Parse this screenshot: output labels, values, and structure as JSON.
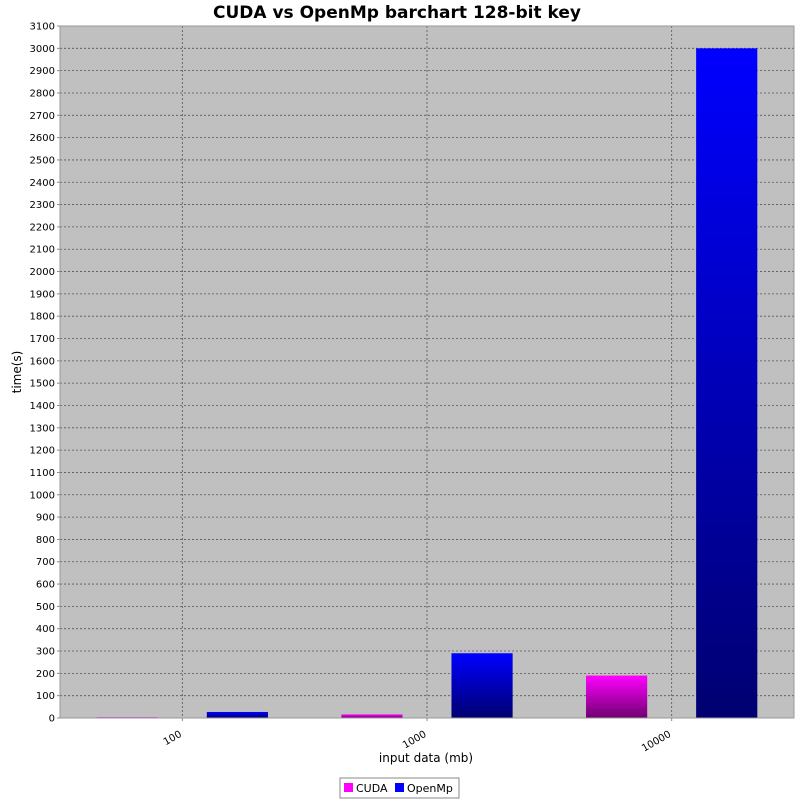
{
  "chart_data": {
    "type": "bar",
    "title": "CUDA vs OpenMp barchart 128-bit key",
    "xlabel": "input data (mb)",
    "ylabel": "time(s)",
    "categories": [
      "100",
      "1000",
      "10000"
    ],
    "series": [
      {
        "name": "CUDA",
        "values": [
          2,
          16,
          190
        ],
        "color": "#ff00ff"
      },
      {
        "name": "OpenMp",
        "values": [
          27,
          290,
          3000
        ],
        "color": "#0000ff"
      }
    ],
    "ylim": [
      0,
      3100
    ],
    "y_tick_step": 100,
    "grid": true,
    "legend_position": "bottom-center",
    "background_color": "#c0c0c0"
  }
}
